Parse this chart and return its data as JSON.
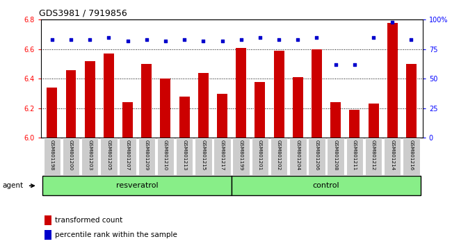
{
  "title": "GDS3981 / 7919856",
  "samples": [
    "GSM801198",
    "GSM801200",
    "GSM801203",
    "GSM801205",
    "GSM801207",
    "GSM801209",
    "GSM801210",
    "GSM801213",
    "GSM801215",
    "GSM801217",
    "GSM801199",
    "GSM801201",
    "GSM801202",
    "GSM801204",
    "GSM801206",
    "GSM801208",
    "GSM801211",
    "GSM801212",
    "GSM801214",
    "GSM801216"
  ],
  "bar_values": [
    6.34,
    6.46,
    6.52,
    6.57,
    6.24,
    6.5,
    6.4,
    6.28,
    6.44,
    6.3,
    6.61,
    6.38,
    6.59,
    6.41,
    6.6,
    6.24,
    6.19,
    6.23,
    6.78,
    6.5
  ],
  "percentile_values": [
    83,
    83,
    83,
    85,
    82,
    83,
    82,
    83,
    82,
    82,
    83,
    85,
    83,
    83,
    85,
    62,
    62,
    85,
    98,
    83
  ],
  "bar_color": "#cc0000",
  "dot_color": "#0000cc",
  "ylim_left": [
    6.0,
    6.8
  ],
  "ylim_right": [
    0,
    100
  ],
  "yticks_left": [
    6.0,
    6.2,
    6.4,
    6.6,
    6.8
  ],
  "yticks_right": [
    0,
    25,
    50,
    75,
    100
  ],
  "ytick_labels_right": [
    "0",
    "25",
    "50",
    "75",
    "100%"
  ],
  "grid_values": [
    6.2,
    6.4,
    6.6
  ],
  "resveratrol_count": 10,
  "control_count": 10,
  "resveratrol_label": "resveratrol",
  "control_label": "control",
  "agent_label": "agent",
  "legend_bar_label": "transformed count",
  "legend_dot_label": "percentile rank within the sample",
  "group_bg_color": "#88ee88",
  "tick_label_bg": "#cccccc",
  "bar_width": 0.55
}
